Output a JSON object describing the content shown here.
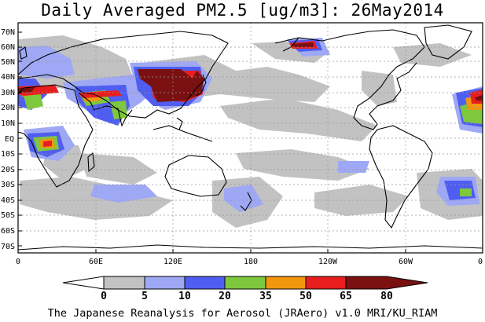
{
  "title": "Daily Averaged PM2.5 [ug/m3]: 26May2014",
  "footer": "The Japanese Reanalysis for Aerosol (JRAero) v1.0 MRI/KU_RIAM",
  "lat_labels": [
    "70N",
    "60N",
    "50N",
    "40N",
    "30N",
    "20N",
    "10N",
    "EQ",
    "10S",
    "20S",
    "30S",
    "40S",
    "50S",
    "60S",
    "70S"
  ],
  "lon_labels": [
    "0",
    "60E",
    "120E",
    "180",
    "120W",
    "60W",
    "0"
  ],
  "colorbar": {
    "labels": [
      "0",
      "5",
      "10",
      "20",
      "35",
      "50",
      "65",
      "80"
    ],
    "colors": [
      "#ffffff",
      "#c2c2c2",
      "#9ea8f5",
      "#4f5ef0",
      "#7dc83c",
      "#f0960f",
      "#e81e1e",
      "#7a1010"
    ]
  }
}
